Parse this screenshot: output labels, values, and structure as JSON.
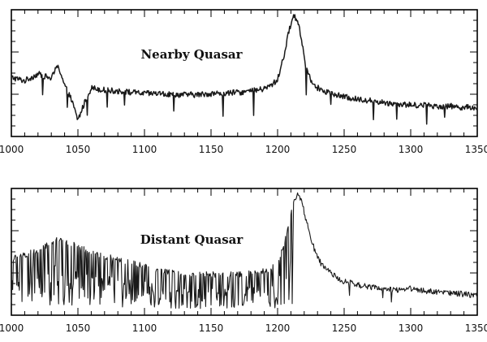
{
  "chart_data": [
    {
      "type": "line",
      "title": "Nearby Quasar",
      "xlabel": "",
      "ylabel": "",
      "xlim": [
        1000,
        1350
      ],
      "ylim": [
        0,
        1
      ],
      "xticks": [
        1000,
        1050,
        1100,
        1150,
        1200,
        1250,
        1300,
        1350
      ],
      "grid": false,
      "series": [
        {
          "color": "#1a1a1a",
          "x": [
            1000,
            1010,
            1020,
            1030,
            1035,
            1040,
            1045,
            1050,
            1055,
            1060,
            1070,
            1080,
            1090,
            1100,
            1110,
            1120,
            1130,
            1140,
            1150,
            1160,
            1170,
            1180,
            1190,
            1195,
            1200,
            1203,
            1206,
            1209,
            1212,
            1215,
            1218,
            1221,
            1225,
            1230,
            1240,
            1250,
            1260,
            1270,
            1280,
            1290,
            1300,
            1310,
            1320,
            1330,
            1340,
            1350
          ],
          "y": [
            0.47,
            0.44,
            0.5,
            0.46,
            0.58,
            0.4,
            0.28,
            0.1,
            0.25,
            0.38,
            0.36,
            0.35,
            0.34,
            0.33,
            0.33,
            0.32,
            0.32,
            0.32,
            0.33,
            0.33,
            0.34,
            0.35,
            0.37,
            0.4,
            0.45,
            0.58,
            0.72,
            0.9,
            1.0,
            0.97,
            0.8,
            0.58,
            0.45,
            0.38,
            0.33,
            0.3,
            0.28,
            0.27,
            0.25,
            0.24,
            0.23,
            0.23,
            0.22,
            0.22,
            0.21,
            0.21
          ]
        }
      ]
    },
    {
      "type": "line",
      "title": "Distant Quasar",
      "xlabel": "",
      "ylabel": "",
      "xlim": [
        1000,
        1350
      ],
      "ylim": [
        0,
        1
      ],
      "xticks": [
        1000,
        1050,
        1100,
        1150,
        1200,
        1250,
        1300,
        1350
      ],
      "grid": false,
      "series": [
        {
          "color": "#1a1a1a",
          "x": [
            1000,
            1010,
            1020,
            1030,
            1035,
            1040,
            1050,
            1060,
            1070,
            1080,
            1090,
            1100,
            1110,
            1120,
            1130,
            1140,
            1150,
            1160,
            1170,
            1180,
            1190,
            1195,
            1200,
            1203,
            1206,
            1209,
            1212,
            1215,
            1218,
            1221,
            1225,
            1230,
            1235,
            1240,
            1250,
            1260,
            1270,
            1280,
            1290,
            1300,
            1310,
            1320,
            1330,
            1340,
            1350
          ],
          "y": [
            0.45,
            0.48,
            0.52,
            0.58,
            0.62,
            0.6,
            0.55,
            0.5,
            0.47,
            0.44,
            0.41,
            0.38,
            0.35,
            0.33,
            0.32,
            0.31,
            0.31,
            0.31,
            0.31,
            0.32,
            0.34,
            0.36,
            0.4,
            0.5,
            0.62,
            0.78,
            0.93,
            1.0,
            0.95,
            0.8,
            0.62,
            0.45,
            0.37,
            0.32,
            0.25,
            0.22,
            0.2,
            0.18,
            0.18,
            0.19,
            0.17,
            0.16,
            0.15,
            0.14,
            0.13
          ]
        }
      ]
    }
  ]
}
